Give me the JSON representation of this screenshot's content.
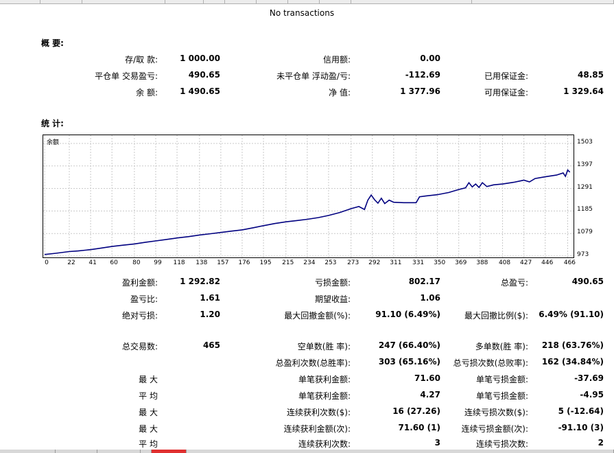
{
  "no_transactions": "No transactions",
  "summary": {
    "title": "概 要:",
    "rows": [
      [
        [
          "存/取 款:",
          "1 000.00"
        ],
        [
          "信用额:",
          "0.00"
        ],
        [
          "",
          ""
        ]
      ],
      [
        [
          "平仓单 交易盈亏:",
          "490.65"
        ],
        [
          "未平仓单 浮动盈/亏:",
          "-112.69"
        ],
        [
          "已用保证金:",
          "48.85"
        ]
      ],
      [
        [
          "余 额:",
          "1 490.65"
        ],
        [
          "净 值:",
          "1 377.96"
        ],
        [
          "可用保证金:",
          "1 329.64"
        ]
      ]
    ]
  },
  "stats_title": "统 计:",
  "chart_data": {
    "type": "line",
    "legend": "余额",
    "series": [
      {
        "name": "余额",
        "color": "#000080"
      }
    ],
    "x_ticks": [
      "0",
      "22",
      "41",
      "60",
      "80",
      "99",
      "118",
      "138",
      "157",
      "176",
      "195",
      "215",
      "234",
      "253",
      "273",
      "292",
      "311",
      "331",
      "350",
      "369",
      "388",
      "408",
      "427",
      "446",
      "466"
    ],
    "y_ticks": [
      "1503",
      "1397",
      "1291",
      "1185",
      "1079",
      "973"
    ],
    "ylim": [
      973,
      1503
    ],
    "grid": true,
    "points": [
      [
        0,
        980
      ],
      [
        10,
        986
      ],
      [
        22,
        994
      ],
      [
        30,
        997
      ],
      [
        41,
        1003
      ],
      [
        50,
        1010
      ],
      [
        60,
        1018
      ],
      [
        70,
        1024
      ],
      [
        80,
        1030
      ],
      [
        90,
        1038
      ],
      [
        99,
        1044
      ],
      [
        110,
        1052
      ],
      [
        118,
        1058
      ],
      [
        128,
        1064
      ],
      [
        138,
        1072
      ],
      [
        148,
        1078
      ],
      [
        157,
        1084
      ],
      [
        166,
        1090
      ],
      [
        176,
        1096
      ],
      [
        186,
        1106
      ],
      [
        195,
        1116
      ],
      [
        205,
        1126
      ],
      [
        215,
        1134
      ],
      [
        225,
        1140
      ],
      [
        234,
        1146
      ],
      [
        244,
        1154
      ],
      [
        253,
        1164
      ],
      [
        263,
        1178
      ],
      [
        273,
        1196
      ],
      [
        280,
        1206
      ],
      [
        285,
        1192
      ],
      [
        288,
        1236
      ],
      [
        291,
        1260
      ],
      [
        294,
        1238
      ],
      [
        297,
        1222
      ],
      [
        300,
        1245
      ],
      [
        303,
        1220
      ],
      [
        307,
        1236
      ],
      [
        311,
        1226
      ],
      [
        320,
        1224
      ],
      [
        331,
        1224
      ],
      [
        334,
        1252
      ],
      [
        340,
        1256
      ],
      [
        350,
        1262
      ],
      [
        360,
        1272
      ],
      [
        369,
        1286
      ],
      [
        375,
        1294
      ],
      [
        378,
        1318
      ],
      [
        381,
        1298
      ],
      [
        384,
        1312
      ],
      [
        387,
        1296
      ],
      [
        390,
        1318
      ],
      [
        394,
        1300
      ],
      [
        400,
        1308
      ],
      [
        408,
        1312
      ],
      [
        418,
        1320
      ],
      [
        427,
        1330
      ],
      [
        432,
        1322
      ],
      [
        437,
        1338
      ],
      [
        446,
        1346
      ],
      [
        456,
        1354
      ],
      [
        462,
        1364
      ],
      [
        464,
        1348
      ],
      [
        466,
        1378
      ],
      [
        468,
        1368
      ]
    ]
  },
  "stats": {
    "rows": [
      [
        [
          "盈利金额:",
          "1 292.82"
        ],
        [
          "亏损金额:",
          "802.17"
        ],
        [
          "总盈亏:",
          "490.65"
        ]
      ],
      [
        [
          "盈亏比:",
          "1.61"
        ],
        [
          "期望收益:",
          "1.06"
        ],
        [
          "",
          ""
        ]
      ],
      [
        [
          "绝对亏损:",
          "1.20"
        ],
        [
          "最大回撤金额(%):",
          "91.10 (6.49%)"
        ],
        [
          "最大回撤比例($):",
          "6.49% (91.10)"
        ]
      ]
    ],
    "rows2": [
      [
        [
          "总交易数:",
          "465"
        ],
        [
          "空单数(胜 率):",
          "247 (66.40%)"
        ],
        [
          "多单数(胜 率):",
          "218 (63.76%)"
        ]
      ],
      [
        [
          "",
          ""
        ],
        [
          "总盈利次数(总胜率):",
          "303 (65.16%)"
        ],
        [
          "总亏损次数(总败率):",
          "162 (34.84%)"
        ]
      ],
      [
        [
          "最 大",
          ""
        ],
        [
          "单笔获利金额:",
          "71.60"
        ],
        [
          "单笔亏损金额:",
          "-37.69"
        ]
      ],
      [
        [
          "平 均",
          ""
        ],
        [
          "单笔获利金额:",
          "4.27"
        ],
        [
          "单笔亏损金额:",
          "-4.95"
        ]
      ],
      [
        [
          "最 大",
          ""
        ],
        [
          "连续获利次数($):",
          "16 (27.26)"
        ],
        [
          "连续亏损次数($):",
          "5 (-12.64)"
        ]
      ],
      [
        [
          "最 大",
          ""
        ],
        [
          "连续获利金额(次):",
          "71.60 (1)"
        ],
        [
          "连续亏损金额(次):",
          "-91.10 (3)"
        ]
      ],
      [
        [
          "平 均",
          ""
        ],
        [
          "连续获利次数:",
          "3"
        ],
        [
          "连续亏损次数:",
          "2"
        ]
      ]
    ]
  }
}
